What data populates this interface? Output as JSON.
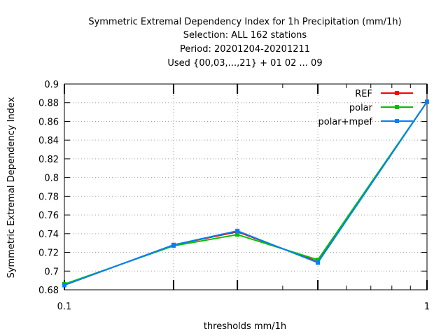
{
  "chart_data": {
    "type": "line",
    "title_lines": [
      "Symmetric Extremal Dependency Index  for 1h Precipitation (mm/1h)",
      "Selection: ALL    162 stations",
      "Period: 20201204-20201211",
      "Used {00,03,...,21} + 01 02 ... 09"
    ],
    "xlabel": "thresholds mm/1h",
    "ylabel": "Symmetric Extremal Dependency Index",
    "x_scale": "log",
    "xlim": [
      0.1,
      1
    ],
    "ylim": [
      0.68,
      0.9
    ],
    "x_tick_labels": [
      {
        "value": 0.1,
        "label": "0.1"
      },
      {
        "value": 1,
        "label": "1"
      }
    ],
    "x_major_ticks": [
      0.1,
      0.2,
      0.3,
      0.5,
      1
    ],
    "y_ticks": [
      0.68,
      0.7,
      0.72,
      0.74,
      0.76,
      0.78,
      0.8,
      0.82,
      0.84,
      0.86,
      0.88,
      0.9
    ],
    "grid": true,
    "legend_position": "top-right",
    "series": [
      {
        "name": "REF",
        "color": "#ff0000",
        "x": [
          0.1,
          0.2,
          0.3,
          0.5,
          1
        ],
        "y": [
          0.685,
          0.728,
          0.742,
          0.71,
          0.881
        ]
      },
      {
        "name": "polar",
        "color": "#00c000",
        "x": [
          0.1,
          0.2,
          0.3,
          0.5,
          1
        ],
        "y": [
          0.686,
          0.727,
          0.739,
          0.712,
          0.881
        ]
      },
      {
        "name": "polar+mpef",
        "color": "#0080ff",
        "x": [
          0.1,
          0.2,
          0.3,
          0.5,
          1
        ],
        "y": [
          0.685,
          0.728,
          0.743,
          0.709,
          0.881
        ]
      }
    ]
  }
}
